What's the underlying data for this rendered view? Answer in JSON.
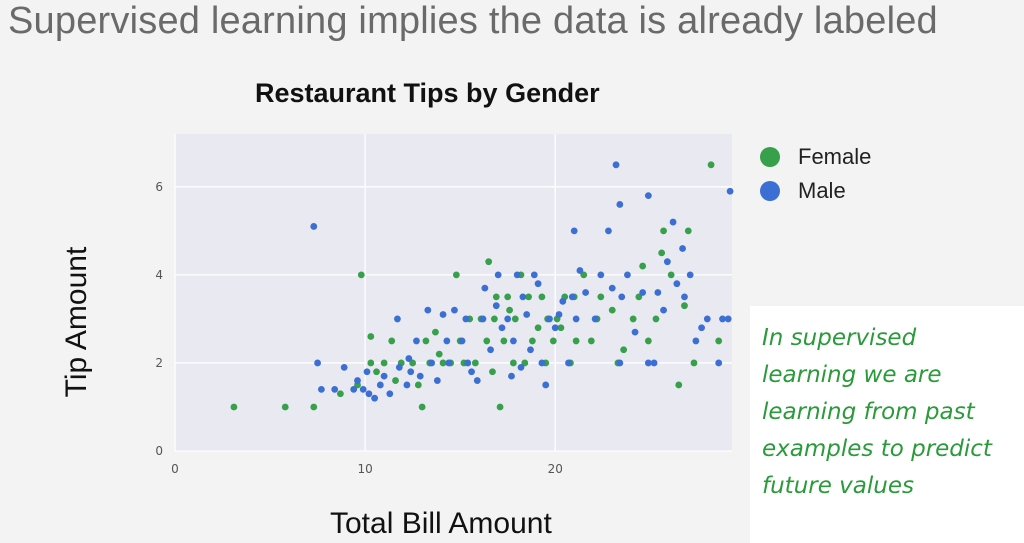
{
  "slide": {
    "title": "Supervised learning implies the data is already labeled"
  },
  "annotation": {
    "text": "In supervised\nlearning we are\nlearning from past\nexamples to predict\nfuture values",
    "color": "#2a9a3a"
  },
  "chart_data": {
    "type": "scatter",
    "title": "Restaurant Tips by Gender",
    "xlabel": "Total Bill Amount",
    "ylabel": "Tip Amount",
    "xlim": [
      0,
      29.3
    ],
    "ylim": [
      0,
      7.2
    ],
    "xticks": [
      0,
      10,
      20
    ],
    "yticks": [
      0,
      2,
      4,
      6
    ],
    "grid": true,
    "legend_position": "right",
    "series": [
      {
        "name": "Female",
        "color": "#36a04a",
        "points": [
          [
            3.1,
            1.0
          ],
          [
            5.8,
            1.0
          ],
          [
            7.3,
            1.0
          ],
          [
            8.7,
            1.3
          ],
          [
            9.6,
            1.5
          ],
          [
            9.8,
            4.0
          ],
          [
            10.3,
            2.0
          ],
          [
            10.3,
            2.6
          ],
          [
            10.6,
            1.8
          ],
          [
            11.0,
            2.0
          ],
          [
            11.4,
            2.5
          ],
          [
            11.6,
            1.6
          ],
          [
            11.9,
            2.0
          ],
          [
            12.5,
            2.0
          ],
          [
            12.8,
            1.5
          ],
          [
            13.0,
            1.0
          ],
          [
            13.2,
            2.5
          ],
          [
            13.4,
            2.0
          ],
          [
            13.7,
            2.7
          ],
          [
            13.9,
            2.2
          ],
          [
            14.1,
            2.0
          ],
          [
            14.5,
            2.0
          ],
          [
            14.8,
            4.0
          ],
          [
            15.0,
            2.5
          ],
          [
            15.2,
            2.0
          ],
          [
            15.5,
            3.0
          ],
          [
            15.8,
            2.0
          ],
          [
            16.1,
            3.0
          ],
          [
            16.4,
            2.5
          ],
          [
            16.5,
            4.3
          ],
          [
            16.7,
            1.8
          ],
          [
            16.8,
            3.0
          ],
          [
            16.9,
            3.5
          ],
          [
            17.1,
            1.0
          ],
          [
            17.3,
            2.5
          ],
          [
            17.5,
            3.5
          ],
          [
            17.6,
            3.2
          ],
          [
            17.8,
            2.0
          ],
          [
            17.9,
            3.0
          ],
          [
            18.2,
            4.0
          ],
          [
            18.4,
            2.0
          ],
          [
            18.6,
            3.5
          ],
          [
            18.8,
            2.5
          ],
          [
            19.1,
            2.8
          ],
          [
            19.3,
            3.5
          ],
          [
            19.5,
            2.0
          ],
          [
            19.6,
            3.0
          ],
          [
            19.9,
            2.5
          ],
          [
            20.1,
            3.0
          ],
          [
            20.3,
            2.8
          ],
          [
            20.5,
            3.5
          ],
          [
            20.8,
            2.0
          ],
          [
            21.0,
            3.5
          ],
          [
            21.1,
            2.5
          ],
          [
            21.5,
            4.0
          ],
          [
            21.9,
            2.5
          ],
          [
            22.2,
            3.0
          ],
          [
            22.4,
            3.5
          ],
          [
            23.0,
            3.2
          ],
          [
            23.3,
            2.0
          ],
          [
            23.6,
            2.3
          ],
          [
            24.1,
            3.0
          ],
          [
            24.4,
            3.5
          ],
          [
            24.6,
            4.2
          ],
          [
            24.9,
            2.5
          ],
          [
            25.3,
            3.0
          ],
          [
            25.6,
            4.5
          ],
          [
            25.7,
            5.0
          ],
          [
            26.1,
            4.0
          ],
          [
            26.5,
            1.5
          ],
          [
            26.8,
            3.3
          ],
          [
            27.0,
            5.0
          ],
          [
            27.3,
            2.0
          ],
          [
            28.2,
            6.5
          ],
          [
            28.6,
            2.5
          ]
        ]
      },
      {
        "name": "Male",
        "color": "#3b6fd4",
        "points": [
          [
            7.3,
            5.1
          ],
          [
            7.5,
            2.0
          ],
          [
            7.7,
            1.4
          ],
          [
            8.4,
            1.4
          ],
          [
            8.9,
            1.9
          ],
          [
            9.4,
            1.4
          ],
          [
            9.6,
            1.6
          ],
          [
            9.9,
            1.4
          ],
          [
            10.1,
            1.8
          ],
          [
            10.2,
            1.3
          ],
          [
            10.5,
            1.2
          ],
          [
            10.8,
            1.5
          ],
          [
            11.0,
            1.7
          ],
          [
            11.3,
            1.3
          ],
          [
            11.7,
            3.0
          ],
          [
            11.8,
            1.9
          ],
          [
            12.2,
            1.5
          ],
          [
            12.3,
            2.1
          ],
          [
            12.4,
            1.8
          ],
          [
            12.7,
            2.5
          ],
          [
            12.9,
            1.7
          ],
          [
            13.3,
            3.2
          ],
          [
            13.5,
            2.0
          ],
          [
            13.8,
            1.6
          ],
          [
            14.1,
            3.1
          ],
          [
            14.3,
            2.5
          ],
          [
            14.4,
            2.0
          ],
          [
            14.7,
            3.2
          ],
          [
            15.1,
            2.5
          ],
          [
            15.3,
            3.0
          ],
          [
            15.4,
            2.0
          ],
          [
            15.6,
            1.8
          ],
          [
            15.9,
            1.6
          ],
          [
            16.2,
            3.0
          ],
          [
            16.3,
            3.7
          ],
          [
            16.6,
            2.3
          ],
          [
            16.9,
            3.3
          ],
          [
            17.0,
            4.0
          ],
          [
            17.2,
            2.8
          ],
          [
            17.5,
            3.0
          ],
          [
            17.7,
            1.7
          ],
          [
            17.8,
            2.5
          ],
          [
            18.0,
            4.0
          ],
          [
            18.2,
            1.9
          ],
          [
            18.3,
            3.5
          ],
          [
            18.5,
            3.1
          ],
          [
            18.7,
            2.3
          ],
          [
            18.9,
            4.0
          ],
          [
            19.1,
            3.8
          ],
          [
            19.3,
            2.0
          ],
          [
            19.5,
            1.5
          ],
          [
            19.7,
            3.0
          ],
          [
            20.0,
            2.8
          ],
          [
            20.2,
            3.1
          ],
          [
            20.4,
            3.4
          ],
          [
            20.7,
            2.0
          ],
          [
            20.9,
            3.5
          ],
          [
            21.0,
            5.0
          ],
          [
            21.1,
            3.0
          ],
          [
            21.3,
            4.1
          ],
          [
            21.6,
            3.6
          ],
          [
            22.1,
            3.0
          ],
          [
            22.4,
            4.0
          ],
          [
            22.8,
            5.0
          ],
          [
            23.0,
            3.7
          ],
          [
            23.4,
            2.0
          ],
          [
            23.5,
            3.5
          ],
          [
            23.8,
            4.0
          ],
          [
            24.2,
            2.7
          ],
          [
            24.6,
            3.6
          ],
          [
            24.9,
            2.0
          ],
          [
            25.2,
            2.0
          ],
          [
            25.4,
            3.6
          ],
          [
            25.7,
            3.2
          ],
          [
            25.9,
            4.3
          ],
          [
            26.2,
            5.2
          ],
          [
            26.4,
            3.8
          ],
          [
            26.8,
            3.5
          ],
          [
            27.1,
            4.0
          ],
          [
            27.4,
            2.5
          ],
          [
            27.7,
            2.8
          ],
          [
            28.0,
            3.0
          ],
          [
            28.6,
            2.0
          ],
          [
            28.8,
            3.0
          ],
          [
            23.2,
            6.5
          ],
          [
            23.4,
            5.6
          ],
          [
            24.9,
            5.8
          ],
          [
            29.2,
            5.9
          ],
          [
            26.7,
            4.6
          ],
          [
            29.1,
            3.0
          ]
        ]
      }
    ]
  }
}
